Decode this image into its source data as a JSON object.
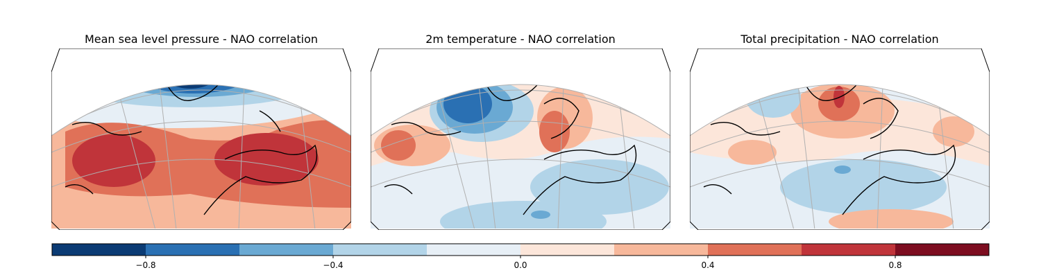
{
  "panels": [
    {
      "id": "mslp",
      "title": "Mean sea level pressure - NAO correlation"
    },
    {
      "id": "t2m",
      "title": "2m temperature - NAO correlation"
    },
    {
      "id": "tp",
      "title": "Total precipitation - NAO correlation"
    }
  ],
  "colorbar": {
    "levels": [
      -1.0,
      -0.8,
      -0.6,
      -0.4,
      -0.2,
      0.0,
      0.2,
      0.4,
      0.6,
      0.8,
      1.0
    ],
    "colors": [
      "#0b3b74",
      "#2a70b3",
      "#6aa9d3",
      "#b2d4e8",
      "#e7eff6",
      "#fce6da",
      "#f7b89b",
      "#e07158",
      "#c0343a",
      "#7d0d20"
    ],
    "ticks": [
      "−0.8",
      "−0.4",
      "0.0",
      "0.4",
      "0.8"
    ],
    "tick_values": [
      -0.8,
      -0.4,
      0.0,
      0.4,
      0.8
    ]
  },
  "colors": {
    "land_outline": "#000000",
    "gridline": "#b0b0b0",
    "frame": "#000000"
  }
}
